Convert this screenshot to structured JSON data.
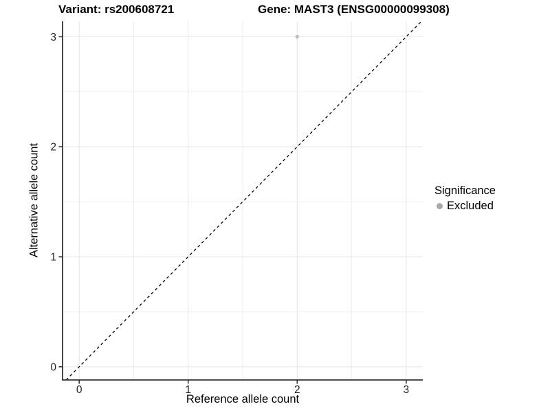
{
  "titles": {
    "variant": "Variant: rs200608721",
    "gene": "Gene: MAST3 (ENSG00000099308)"
  },
  "chart_data": {
    "type": "scatter",
    "title": "Variant: rs200608721    Gene: MAST3 (ENSG00000099308)",
    "xlabel": "Reference allele count",
    "ylabel": "Alternative allele count",
    "xlim": [
      -0.1525,
      3.1525
    ],
    "ylim": [
      -0.12,
      3.14
    ],
    "x_ticks": [
      0,
      1,
      2,
      3
    ],
    "y_ticks": [
      0,
      1,
      2,
      3
    ],
    "x_minor": [
      0.5,
      1.5,
      2.5
    ],
    "y_minor": [
      0.5,
      1.5,
      2.5
    ],
    "grid": true,
    "series": [
      {
        "name": "Excluded",
        "points": [
          {
            "x": 2,
            "y": 3
          }
        ],
        "color": "#bebebe"
      }
    ],
    "reference_line": {
      "type": "identity",
      "equation": "y = x",
      "style": "dashed",
      "color": "#000000",
      "from": -0.12,
      "to": 3.14
    },
    "legend": {
      "title": "Significance",
      "position": "right",
      "entries": [
        {
          "label": "Excluded",
          "color": "#a8a8a8"
        }
      ]
    }
  },
  "colors": {
    "background": "#ffffff",
    "grid_major": "#e4e4e4",
    "grid_minor": "#f0f0f0",
    "axis_line": "#333333",
    "tick_label": "#262626",
    "point": "#bebebe",
    "legend_key": "#a8a8a8",
    "ref_line": "#000000"
  }
}
